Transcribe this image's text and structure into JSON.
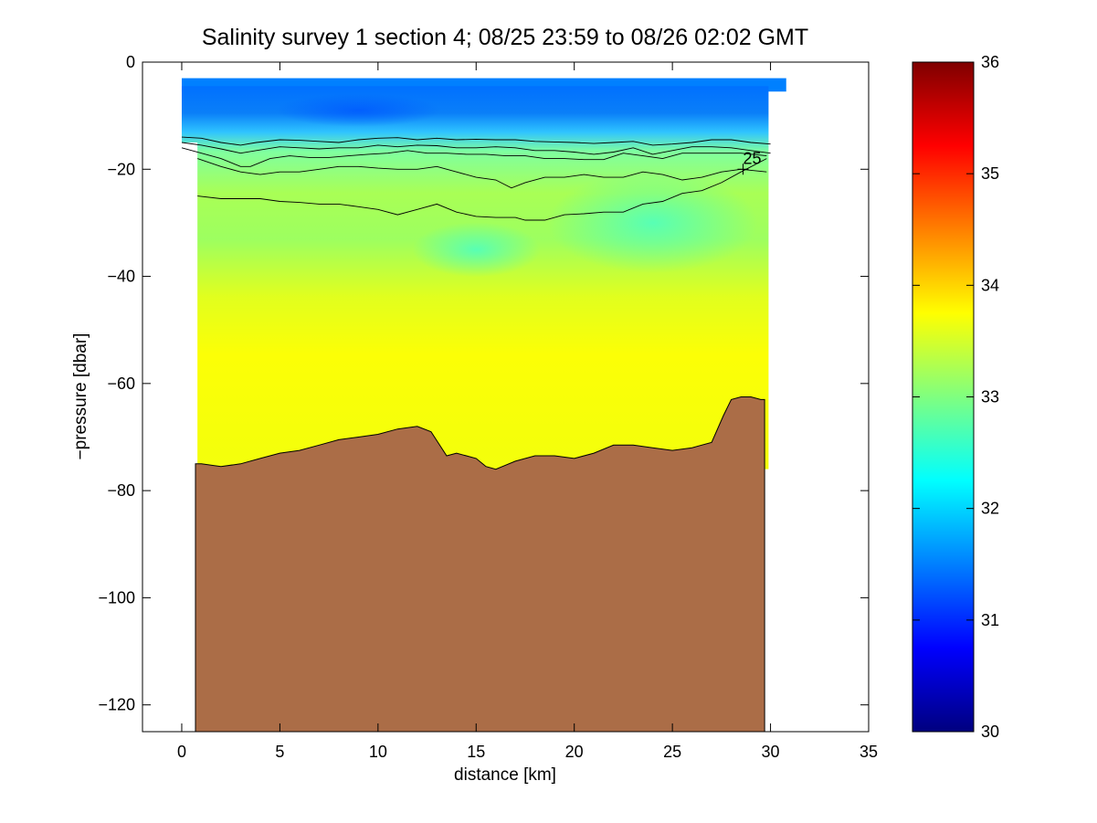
{
  "chart_data": [
    {
      "type": "heatmap",
      "title": "Salinity survey 1 section 4; 08/25 23:59 to 08/26 02:02 GMT",
      "xlabel": "distance [km]",
      "ylabel": "−pressure [dbar]",
      "xlim": [
        -2,
        35
      ],
      "ylim": [
        -125,
        0
      ],
      "xticks": [
        0,
        5,
        10,
        15,
        20,
        25,
        30,
        35
      ],
      "yticks": [
        0,
        -20,
        -40,
        -60,
        -80,
        -100,
        -120
      ],
      "colorbar": {
        "range": [
          30,
          36
        ],
        "ticks": [
          30,
          31,
          32,
          33,
          34,
          35,
          36
        ],
        "colormap": "jet"
      },
      "salinity_layers": [
        {
          "top": -3,
          "bottom": -15,
          "value": 31.5
        },
        {
          "top": -15,
          "bottom": -20,
          "value": 32.6
        },
        {
          "top": -20,
          "bottom": -28,
          "value": 33.0
        },
        {
          "top": -28,
          "bottom": -45,
          "value": 33.1
        },
        {
          "top": -45,
          "bottom": -55,
          "value": 33.5
        },
        {
          "top": -55,
          "bottom": -76,
          "value": 33.75
        }
      ],
      "data_extent": {
        "x": [
          0,
          30.8
        ],
        "y_top": -3,
        "main_x": [
          0.8,
          29.9
        ],
        "lower_bottom": -62
      },
      "seabed_color": "#ab6d47",
      "seabed": {
        "x": [
          0.7,
          1.0,
          2.0,
          3.0,
          4.0,
          5.0,
          6.0,
          7.0,
          8.0,
          9.0,
          10.0,
          11.0,
          12.0,
          12.7,
          13.5,
          14.0,
          15.0,
          15.5,
          16.0,
          17.0,
          18.0,
          19.0,
          20.0,
          21.0,
          22.0,
          23.0,
          24.0,
          25.0,
          26.0,
          27.0,
          27.6,
          28.0,
          28.5,
          29.0,
          29.5,
          29.7
        ],
        "depth": [
          -75,
          -75,
          -75.5,
          -75,
          -74,
          -73,
          -72.5,
          -71.5,
          -70.5,
          -70,
          -69.5,
          -68.5,
          -68,
          -69,
          -73.5,
          -73,
          -74,
          -75.5,
          -76,
          -74.5,
          -73.5,
          -73.5,
          -74,
          -73,
          -71.5,
          -71.5,
          -72,
          -72.5,
          -72,
          -71,
          -66,
          -63,
          -62.5,
          -62.5,
          -63,
          -63
        ]
      },
      "contours": [
        {
          "x": [
            0.0,
            1.0,
            2.0,
            3.0,
            3.8,
            5.0,
            6.0,
            7.0,
            8.0,
            9.0,
            10.0,
            11.0,
            12.0,
            13.0,
            14.0,
            15.0,
            16.0,
            17.0,
            18.0,
            19.0,
            20.0,
            21.0,
            22.0,
            23.0,
            24.0,
            25.0,
            26.0,
            27.0,
            28.0,
            29.0,
            30.0
          ],
          "y": [
            -14,
            -14.2,
            -15,
            -15.5,
            -15,
            -14.5,
            -14.6,
            -14.8,
            -15,
            -14.5,
            -14.2,
            -14.1,
            -14.5,
            -14.2,
            -14.5,
            -14.4,
            -14.5,
            -14.5,
            -14.8,
            -14.9,
            -15,
            -15.2,
            -15,
            -14.8,
            -15.5,
            -15.3,
            -15,
            -14.5,
            -14.5,
            -15,
            -15.3
          ]
        },
        {
          "x": [
            0.0,
            1.0,
            2.0,
            3.0,
            3.8,
            5.0,
            6.0,
            7.0,
            8.0,
            9.0,
            10.0,
            11.0,
            12.0,
            13.0,
            14.0,
            15.0,
            16.0,
            17.0,
            18.0,
            19.0,
            20.0,
            21.0,
            22.0,
            23.0,
            24.0,
            25.0,
            26.0,
            27.0,
            28.0,
            29.0,
            30.0
          ],
          "y": [
            -15,
            -15.5,
            -16.2,
            -17,
            -16.5,
            -15.8,
            -16,
            -16.2,
            -16,
            -16,
            -15.5,
            -15.8,
            -15.5,
            -15.6,
            -16,
            -16,
            -15.8,
            -16,
            -16.5,
            -16.5,
            -16.8,
            -17.2,
            -16.8,
            -16,
            -17.2,
            -16.5,
            -15.8,
            -15.8,
            -16,
            -16.5,
            -17
          ]
        },
        {
          "x": [
            0.0,
            1.0,
            2.0,
            3.0,
            3.5,
            4.5,
            5.5,
            6.5,
            7.5,
            8.5,
            9.5,
            10.5,
            11.5,
            12.5,
            13.5,
            14.5,
            15.5,
            16.5,
            17.5,
            18.5,
            19.5,
            20.5,
            21.5,
            22.5,
            23.5,
            24.5,
            25.5,
            26.5,
            27.5,
            28.5,
            29.8
          ],
          "y": [
            -16,
            -17,
            -18,
            -19.5,
            -19.5,
            -18,
            -17.5,
            -17.8,
            -17.8,
            -17.5,
            -17.2,
            -17,
            -16.5,
            -17,
            -17,
            -17.2,
            -17.2,
            -17.5,
            -17.5,
            -18,
            -18,
            -18.2,
            -18.2,
            -17,
            -17.5,
            -18,
            -17,
            -17,
            -17,
            -17,
            -17.5
          ]
        },
        {
          "x": [
            0.8,
            2.0,
            3.0,
            4.0,
            5.0,
            6.0,
            7.0,
            8.0,
            9.0,
            10.0,
            11.0,
            12.0,
            13.0,
            14.0,
            15.0,
            16.0,
            16.8,
            17.5,
            18.5,
            19.5,
            20.5,
            21.5,
            22.5,
            23.5,
            24.5,
            25.5,
            26.5,
            27.5,
            28.5,
            29.8
          ],
          "y": [
            -18,
            -19.5,
            -20.5,
            -21,
            -20.5,
            -20.5,
            -20,
            -19.5,
            -19.5,
            -19.8,
            -20,
            -20,
            -19.5,
            -20.5,
            -21.5,
            -22,
            -23.5,
            -22.5,
            -21.5,
            -21.5,
            -21,
            -21.5,
            -21.5,
            -20.5,
            -21,
            -22,
            -21.5,
            -20.5,
            -20,
            -20.5
          ]
        },
        {
          "x": [
            0.8,
            2.0,
            3.0,
            4.0,
            5.0,
            6.0,
            7.0,
            8.0,
            9.0,
            10.0,
            11.0,
            12.0,
            13.0,
            14.0,
            15.0,
            16.0,
            17.0,
            17.5,
            18.5,
            19.5,
            20.5,
            21.5,
            22.5,
            23.5,
            24.5,
            25.5,
            26.5,
            27.5,
            28.5,
            29.8
          ],
          "y": [
            -25,
            -25.5,
            -25.5,
            -25.5,
            -26,
            -26.2,
            -26.5,
            -26.5,
            -27,
            -27.5,
            -28.5,
            -27.5,
            -26.5,
            -28,
            -28.8,
            -29,
            -29,
            -29.5,
            -29.5,
            -28.5,
            -28.3,
            -28,
            -28,
            -26.5,
            -26,
            -24.5,
            -24,
            -22.5,
            -20.5,
            -18
          ]
        }
      ],
      "annotation": {
        "text": "25",
        "x": 28.6,
        "y": -20
      }
    }
  ]
}
